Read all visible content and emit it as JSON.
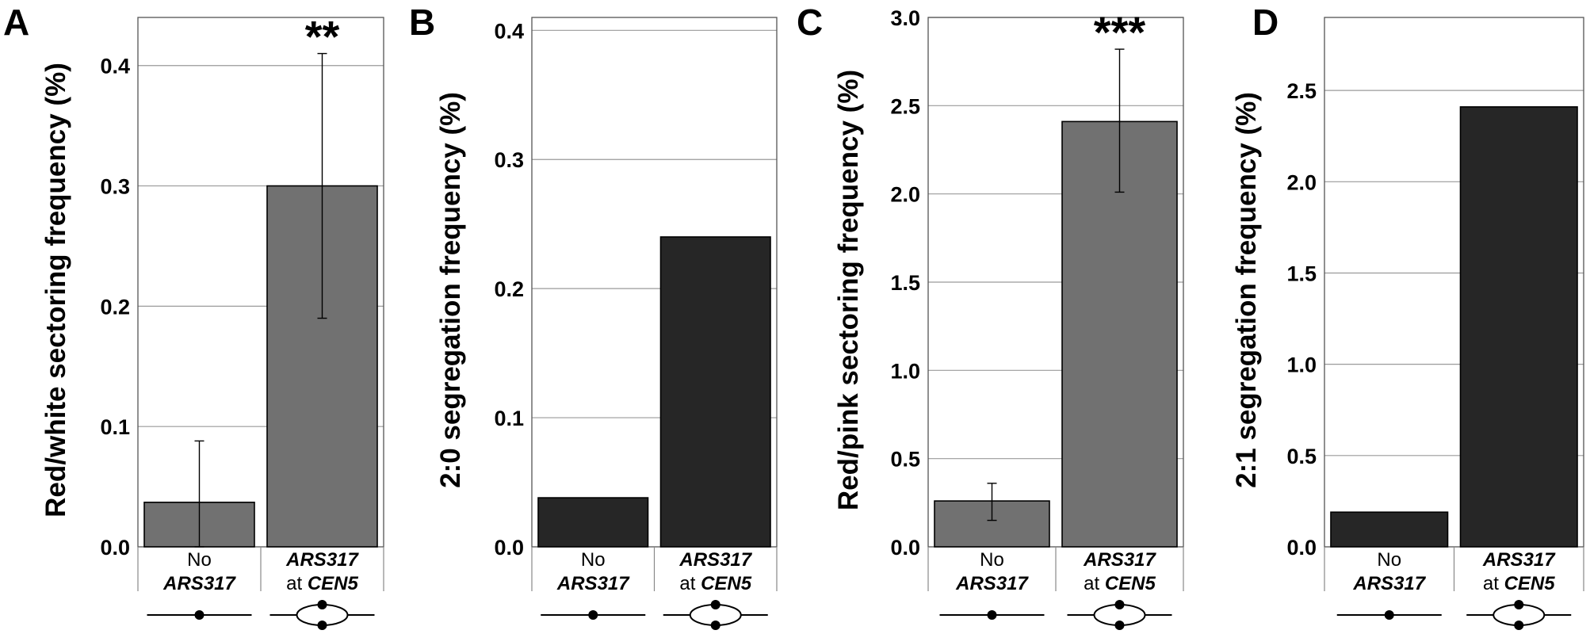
{
  "chart_data": [
    {
      "type": "bar",
      "panel_label": "A",
      "ylabel": "Red/white sectoring frequency (%)",
      "ylim": [
        0,
        0.44
      ],
      "yticks": [
        "0.0",
        "0.1",
        "0.2",
        "0.3",
        "0.4"
      ],
      "ytick_values": [
        0.0,
        0.1,
        0.2,
        0.3,
        0.4
      ],
      "grid": true,
      "bar_color": "#717171",
      "categories": [
        {
          "line1": "No",
          "line2": "ARS317",
          "line2_prefix": "",
          "diagram": "linear"
        },
        {
          "line1": "ARS317",
          "line2": "CEN5",
          "line2_prefix": "at ",
          "diagram": "bubble"
        }
      ],
      "values": [
        0.037,
        0.3
      ],
      "errors": [
        [
          0.0,
          0.088
        ],
        [
          0.19,
          0.41
        ]
      ],
      "annotations": [
        "",
        "**"
      ]
    },
    {
      "type": "bar",
      "panel_label": "B",
      "ylabel": "2:0 segregation frequency (%)",
      "ylim": [
        0,
        0.41
      ],
      "yticks": [
        "0.0",
        "0.1",
        "0.2",
        "0.3",
        "0.4"
      ],
      "ytick_values": [
        0.0,
        0.1,
        0.2,
        0.3,
        0.4
      ],
      "grid": true,
      "bar_color": "#262626",
      "categories": [
        {
          "line1": "No",
          "line2": "ARS317",
          "line2_prefix": "",
          "diagram": "linear"
        },
        {
          "line1": "ARS317",
          "line2": "CEN5",
          "line2_prefix": "at ",
          "diagram": "bubble"
        }
      ],
      "values": [
        0.038,
        0.24
      ],
      "errors": [
        null,
        null
      ],
      "annotations": [
        "",
        ""
      ]
    },
    {
      "type": "bar",
      "panel_label": "C",
      "ylabel": "Red/pink sectoring frequency (%)",
      "ylim": [
        0,
        3.0
      ],
      "yticks": [
        "0.0",
        "0.5",
        "1.0",
        "1.5",
        "2.0",
        "2.5",
        "3.0"
      ],
      "ytick_values": [
        0.0,
        0.5,
        1.0,
        1.5,
        2.0,
        2.5,
        3.0
      ],
      "grid": true,
      "bar_color": "#717171",
      "categories": [
        {
          "line1": "No",
          "line2": "ARS317",
          "line2_prefix": "",
          "diagram": "linear"
        },
        {
          "line1": "ARS317",
          "line2": "CEN5",
          "line2_prefix": "at ",
          "diagram": "bubble"
        }
      ],
      "values": [
        0.26,
        2.41
      ],
      "errors": [
        [
          0.15,
          0.36
        ],
        [
          2.01,
          2.82
        ]
      ],
      "annotations": [
        "",
        "***"
      ]
    },
    {
      "type": "bar",
      "panel_label": "D",
      "ylabel": "2:1 segregation frequency (%)",
      "ylim": [
        0,
        2.9
      ],
      "yticks": [
        "0.0",
        "0.5",
        "1.0",
        "1.5",
        "2.0",
        "2.5"
      ],
      "ytick_values": [
        0.0,
        0.5,
        1.0,
        1.5,
        2.0,
        2.5
      ],
      "grid": true,
      "bar_color": "#262626",
      "categories": [
        {
          "line1": "No",
          "line2": "ARS317",
          "line2_prefix": "",
          "diagram": "linear"
        },
        {
          "line1": "ARS317",
          "line2": "CEN5",
          "line2_prefix": "at ",
          "diagram": "bubble"
        }
      ],
      "values": [
        0.19,
        2.41
      ],
      "errors": [
        null,
        null
      ],
      "annotations": [
        "",
        ""
      ]
    }
  ]
}
